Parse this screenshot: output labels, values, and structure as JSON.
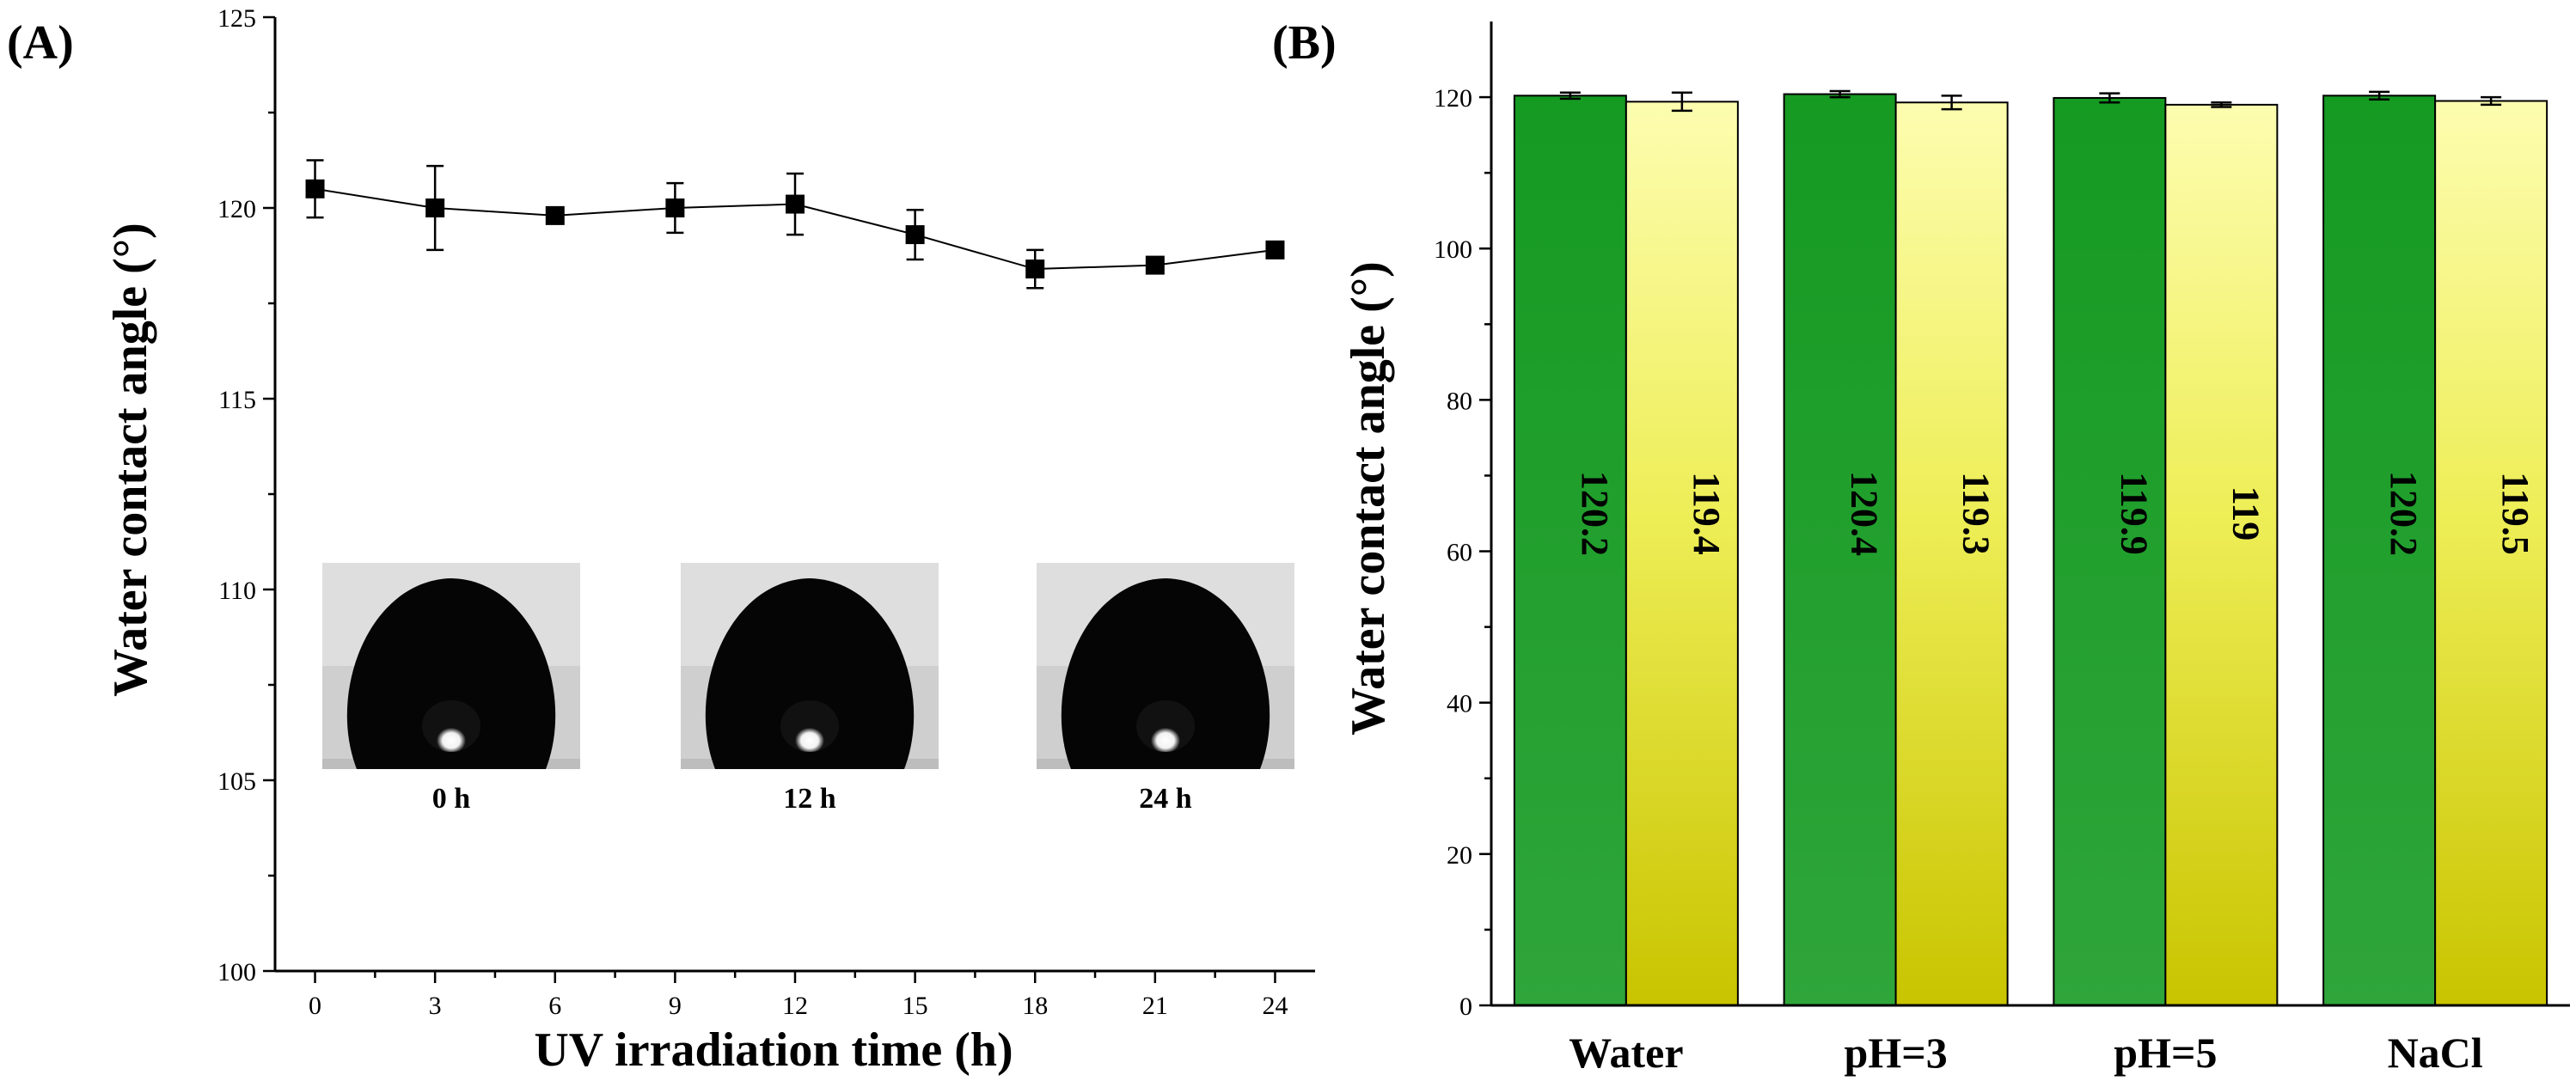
{
  "chart_data": [
    {
      "panel": "(A)",
      "type": "line",
      "xlabel": "UV irradiation time (h)",
      "ylabel": "Water contact angle (°)",
      "xlim": [
        -1,
        25
      ],
      "ylim": [
        100,
        125
      ],
      "xticks": [
        0,
        3,
        6,
        9,
        12,
        15,
        18,
        21,
        24
      ],
      "yticks": [
        100,
        105,
        110,
        115,
        120,
        125
      ],
      "x": [
        0,
        3,
        6,
        9,
        12,
        15,
        18,
        21,
        24
      ],
      "y": [
        120.5,
        120.0,
        119.8,
        120.0,
        120.1,
        119.3,
        118.4,
        118.5,
        118.9
      ],
      "error": [
        0.75,
        1.1,
        0.15,
        0.65,
        0.8,
        0.65,
        0.5,
        0.2,
        0.2
      ],
      "insets": [
        {
          "label": "0 h"
        },
        {
          "label": "12 h"
        },
        {
          "label": "24 h"
        }
      ]
    },
    {
      "panel": "(B)",
      "type": "bar",
      "ylabel": "Water contact angle (°)",
      "ylim": [
        0,
        130
      ],
      "yticks": [
        0,
        20,
        40,
        60,
        80,
        100,
        120
      ],
      "categories": [
        "Water",
        "pH=3",
        "pH=5",
        "NaCl"
      ],
      "series": [
        {
          "name": "green",
          "color": "#1e9e2a",
          "values": [
            120.2,
            120.4,
            119.9,
            120.2
          ],
          "labels": [
            "120.2",
            "120.4",
            "119.9",
            "120.2"
          ],
          "error": [
            0.4,
            0.4,
            0.6,
            0.5
          ]
        },
        {
          "name": "yellow",
          "color": "#efef6a",
          "values": [
            119.4,
            119.3,
            119,
            119.5
          ],
          "labels": [
            "119.4",
            "119.3",
            "119",
            "119.5"
          ],
          "error": [
            1.2,
            0.9,
            0.3,
            0.5
          ]
        }
      ]
    }
  ]
}
